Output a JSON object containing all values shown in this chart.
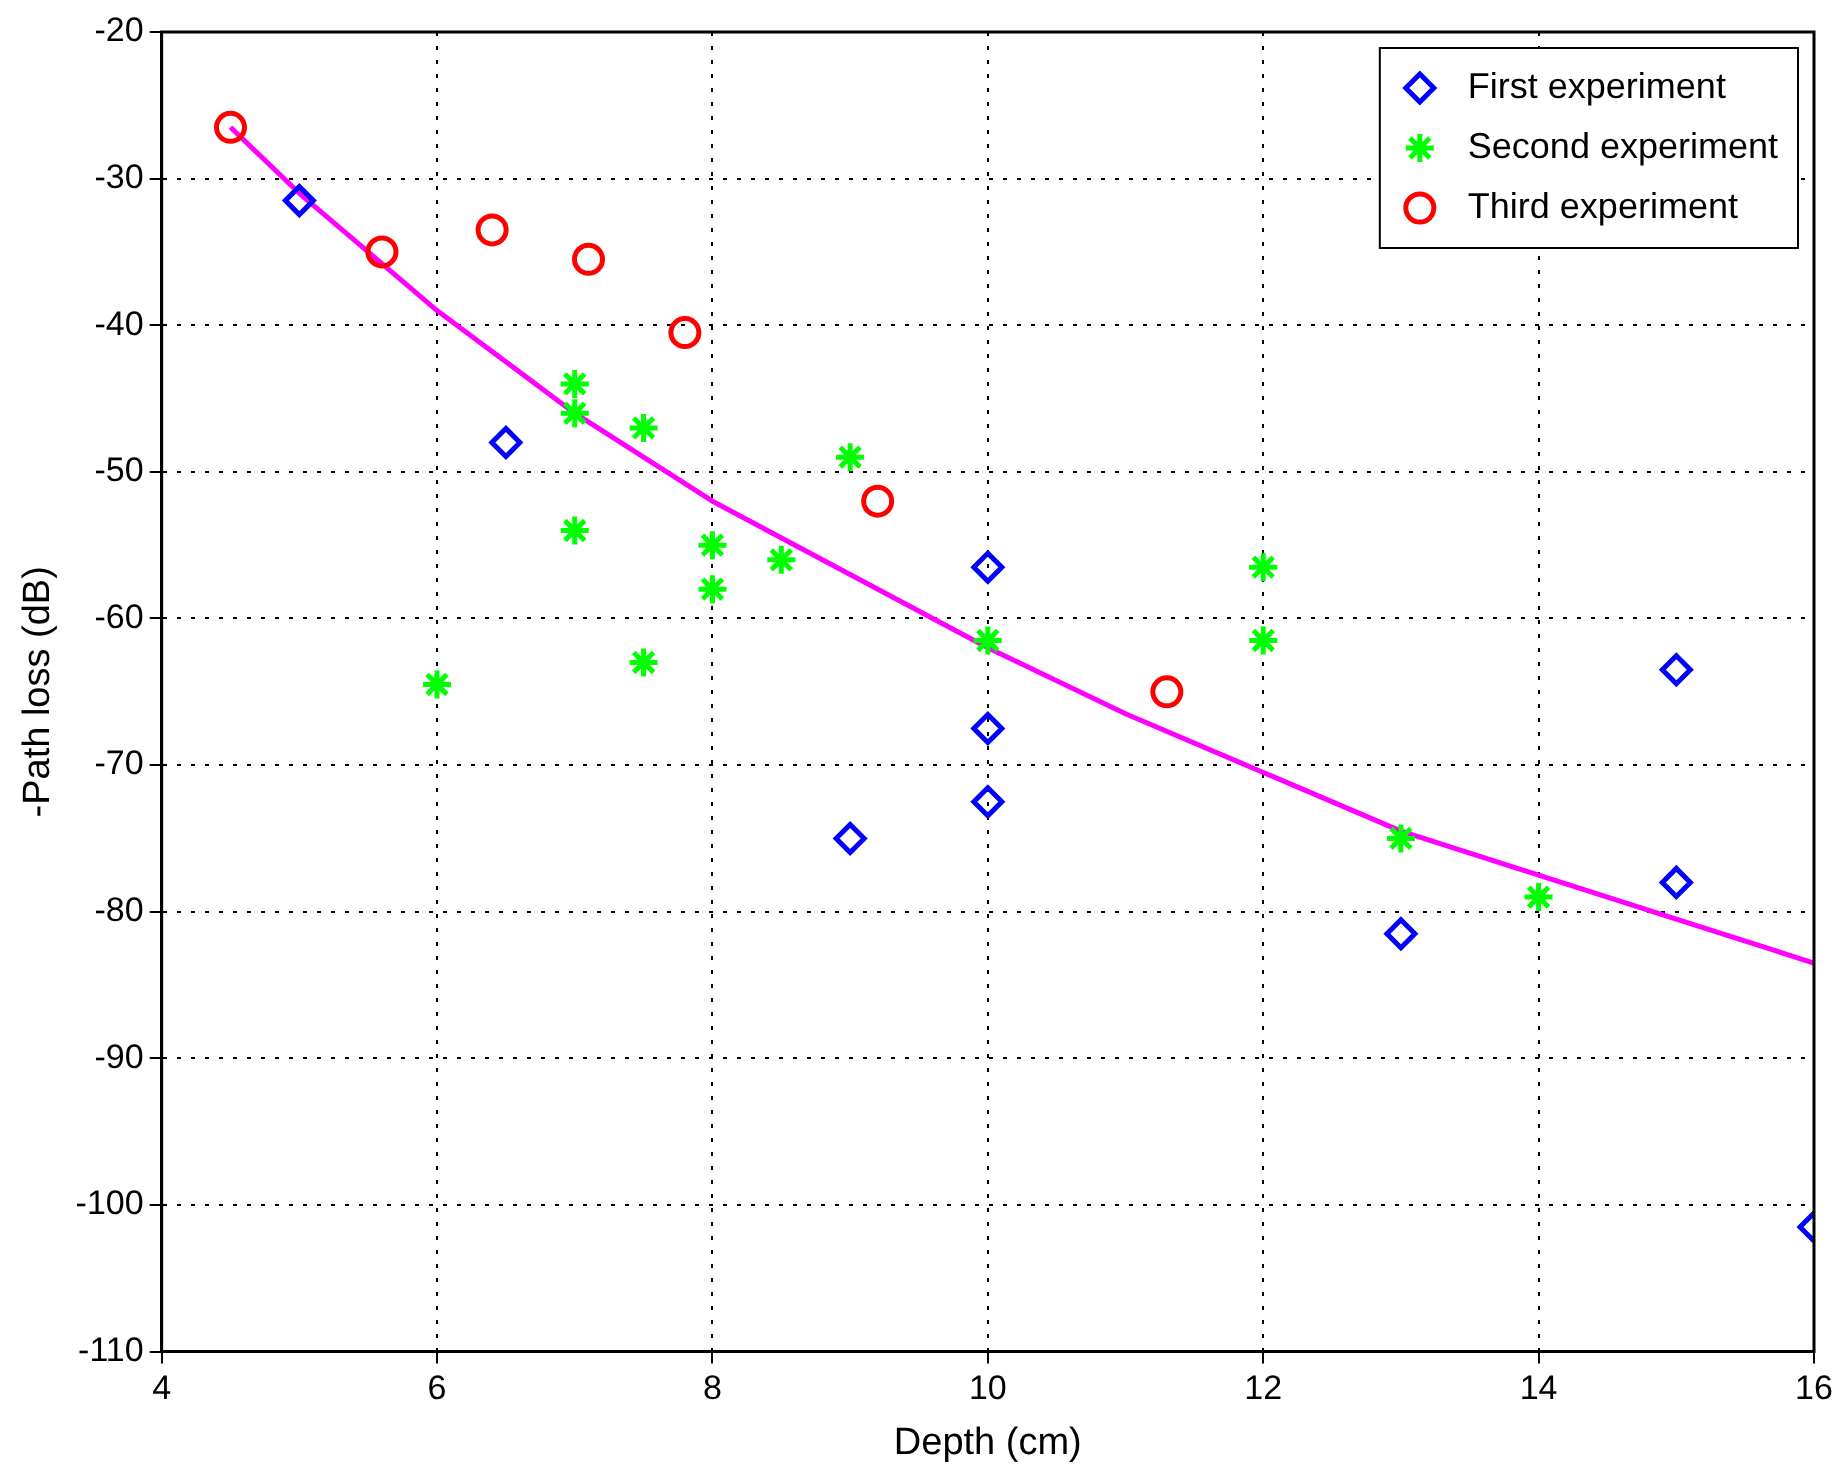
{
  "chart_data": {
    "type": "scatter",
    "xlabel": "Depth (cm)",
    "ylabel": "-Path loss (dB)",
    "xlim": [
      4,
      16
    ],
    "xticks": [
      4,
      6,
      8,
      10,
      12,
      14,
      16
    ],
    "ylim": [
      -110,
      -20
    ],
    "yticks": [
      -110,
      -100,
      -90,
      -80,
      -70,
      -60,
      -50,
      -40,
      -30,
      -20
    ],
    "grid": true,
    "legend": "top right",
    "series": [
      {
        "name": "First experiment",
        "color": "#0000ff",
        "marker": "diamond",
        "x": [
          5,
          6.5,
          9,
          10,
          10,
          10,
          13,
          15,
          15,
          16
        ],
        "values": [
          -31.5,
          -48,
          -75,
          -56.5,
          -67.5,
          -72.5,
          -81.5,
          -63.5,
          -78,
          -101.5
        ]
      },
      {
        "name": "Second experiment",
        "color": "#00ff00",
        "marker": "cross",
        "x": [
          6,
          7,
          7,
          7,
          7.5,
          7.5,
          8,
          8,
          8.5,
          9,
          10,
          12,
          12,
          13,
          14
        ],
        "values": [
          -64.5,
          -44,
          -46,
          -54,
          -47,
          -63,
          -55,
          -58,
          -56,
          -49,
          -61.5,
          -56.5,
          -61.5,
          -75,
          -79
        ]
      },
      {
        "name": "Third experiment",
        "color": "#ff0000",
        "marker": "circle",
        "x": [
          4.5,
          5.6,
          6.4,
          7.1,
          7.8,
          9.2,
          11.3
        ],
        "values": [
          -26.5,
          -35,
          -33.5,
          -35.5,
          -40.5,
          -52,
          -65
        ]
      },
      {
        "type": "line",
        "color": "#ff00ff",
        "marker": "none",
        "line_style": "solid",
        "x": [
          4.5,
          5,
          6,
          7,
          8,
          9,
          10,
          11,
          12,
          13,
          14,
          15,
          16
        ],
        "values": [
          -26.5,
          -31,
          -39,
          -46,
          -52,
          -57,
          -62,
          -66.5,
          -70.5,
          -74.5,
          -77.5,
          -80.5,
          -83.5
        ]
      }
    ]
  }
}
